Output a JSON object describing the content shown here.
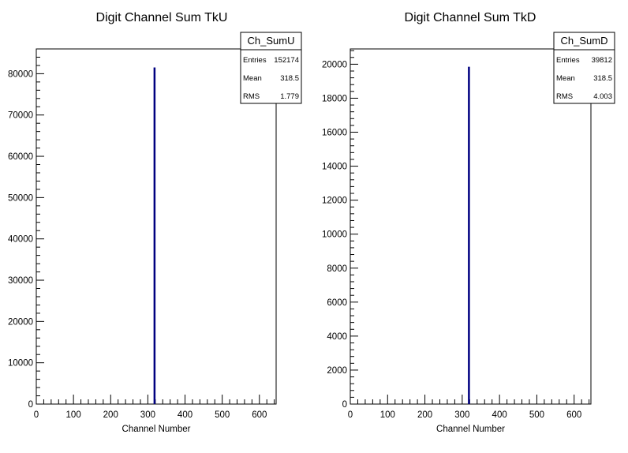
{
  "chart_data": [
    {
      "type": "bar",
      "title": "Digit Channel Sum TkU",
      "xlabel": "Channel Number",
      "ylabel": "",
      "xlim": [
        0,
        645
      ],
      "ylim": [
        0,
        86000
      ],
      "x_ticks": [
        0,
        100,
        200,
        300,
        400,
        500,
        600
      ],
      "y_ticks": [
        0,
        10000,
        20000,
        30000,
        40000,
        50000,
        60000,
        70000,
        80000
      ],
      "x_ticks_text": [
        "0",
        "100",
        "200",
        "300",
        "400",
        "500",
        "600"
      ],
      "y_ticks_text": [
        "0",
        "10000",
        "20000",
        "30000",
        "40000",
        "50000",
        "60000",
        "70000",
        "80000"
      ],
      "bins": [
        {
          "x": 318,
          "value": 81500
        }
      ],
      "line_color": "#000080",
      "stats": {
        "name": "Ch_SumU",
        "rows": [
          {
            "label": "Entries",
            "value": "152174"
          },
          {
            "label": "Mean",
            "value": "318.5"
          },
          {
            "label": "RMS",
            "value": "1.779"
          }
        ]
      }
    },
    {
      "type": "bar",
      "title": "Digit Channel Sum TkD",
      "xlabel": "Channel Number",
      "ylabel": "",
      "xlim": [
        0,
        645
      ],
      "ylim": [
        0,
        20900
      ],
      "x_ticks": [
        0,
        100,
        200,
        300,
        400,
        500,
        600
      ],
      "y_ticks": [
        0,
        2000,
        4000,
        6000,
        8000,
        10000,
        12000,
        14000,
        16000,
        18000,
        20000
      ],
      "x_ticks_text": [
        "0",
        "100",
        "200",
        "300",
        "400",
        "500",
        "600"
      ],
      "y_ticks_text": [
        "0",
        "2000",
        "4000",
        "6000",
        "8000",
        "10000",
        "12000",
        "14000",
        "16000",
        "18000",
        "20000"
      ],
      "bins": [
        {
          "x": 318,
          "value": 19850
        }
      ],
      "line_color": "#000080",
      "stats": {
        "name": "Ch_SumD",
        "rows": [
          {
            "label": "Entries",
            "value": "39812"
          },
          {
            "label": "Mean",
            "value": "318.5"
          },
          {
            "label": "RMS",
            "value": "4.003"
          }
        ]
      }
    }
  ]
}
